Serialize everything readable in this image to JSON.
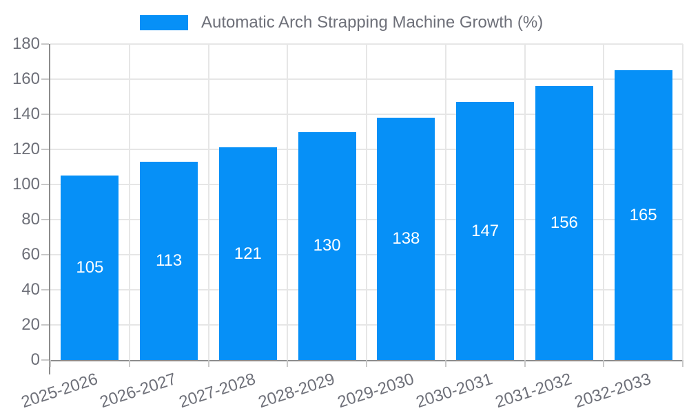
{
  "chart_data": {
    "type": "bar",
    "title": "Automatic Arch Strapping Machine Growth (%)",
    "categories": [
      "2025-2026",
      "2026-2027",
      "2027-2028",
      "2028-2029",
      "2029-2030",
      "2030-2031",
      "2031-2032",
      "2032-2033"
    ],
    "values": [
      105,
      113,
      121,
      130,
      138,
      147,
      156,
      165
    ],
    "xlabel": "",
    "ylabel": "",
    "ylim": [
      0,
      180
    ],
    "ytick_step": 20,
    "yticks": [
      0,
      20,
      40,
      60,
      80,
      100,
      120,
      140,
      160,
      180
    ],
    "grid": true,
    "legend_position": "top-center",
    "x_label_rotation_deg": -18,
    "value_labels_position": "inside-center",
    "legend": {
      "label": "Automatic Arch Strapping Machine Growth (%)",
      "swatch_color": "#0690f7"
    },
    "colors": {
      "bar": "#0690f7",
      "grid_line": "#e6e6e6",
      "axis_line": "#8c8c8c",
      "tick_line": "#c8c8c8",
      "axis_text": "#6e7079",
      "value_label": "#ffffff",
      "background": "#ffffff"
    }
  }
}
